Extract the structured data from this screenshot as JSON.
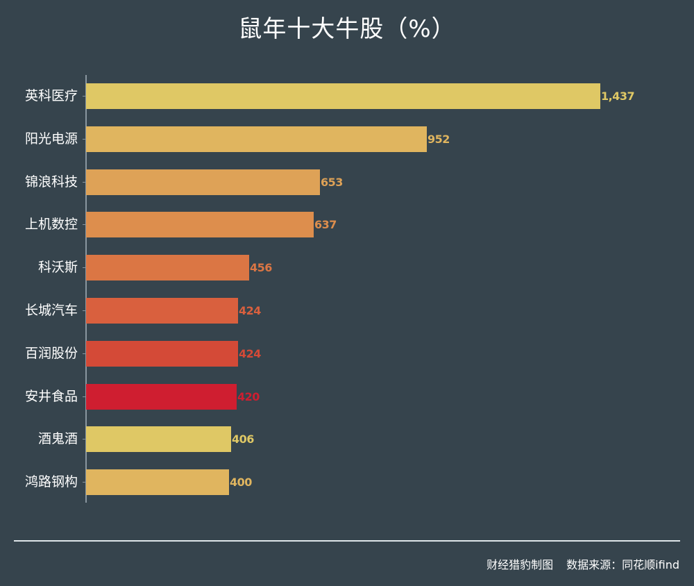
{
  "chart_data": {
    "type": "bar",
    "orientation": "horizontal",
    "title": "鼠年十大牛股（%）",
    "xlabel": "",
    "ylabel": "",
    "categories": [
      "英科医疗",
      "阳光电源",
      "锦浪科技",
      "上机数控",
      "科沃斯",
      "长城汽车",
      "百润股份",
      "安井食品",
      "酒鬼酒",
      "鸿路钢构"
    ],
    "values": [
      1437,
      952,
      653,
      637,
      456,
      424,
      424,
      420,
      406,
      400
    ],
    "value_labels": [
      "1,437",
      "952",
      "653",
      "637",
      "456",
      "424",
      "424",
      "420",
      "406",
      "400"
    ],
    "colors": [
      "#dfc865",
      "#e0b55f",
      "#dea257",
      "#dd8e4d",
      "#db7644",
      "#d9603e",
      "#d44a37",
      "#cf1e30",
      "#dfc865",
      "#e0b55f"
    ],
    "grid": false,
    "legend": null,
    "xlim": [
      0,
      1437
    ]
  },
  "header": {
    "title": "鼠年十大牛股（%）"
  },
  "footer": {
    "credit": "财经猎豹制图",
    "source": "数据来源：同花顺ifind"
  }
}
